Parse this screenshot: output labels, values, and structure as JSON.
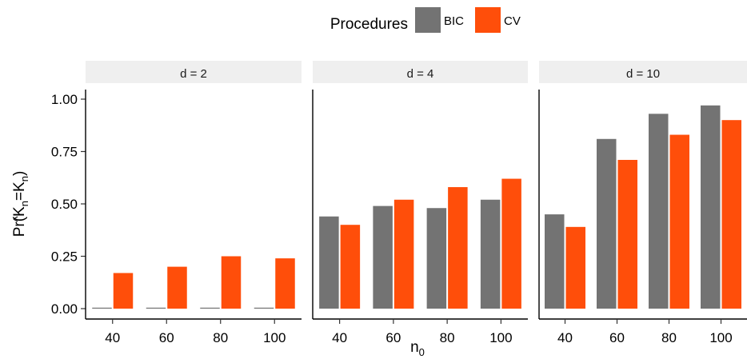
{
  "legend": {
    "title": "Procedures",
    "items": [
      {
        "label": "BIC",
        "color": "#737373"
      },
      {
        "label": "CV",
        "color": "#FF4E0A"
      }
    ]
  },
  "chart_data": {
    "type": "bar",
    "xlabel": "n",
    "xlabel_sub": "0",
    "ylabel": "Pr(K̂n=Kn)",
    "ylim": [
      0,
      1
    ],
    "y_ticks": [
      "0.00",
      "0.25",
      "0.50",
      "0.75",
      "1.00"
    ],
    "categories": [
      "40",
      "60",
      "80",
      "100"
    ],
    "legend_position": "top",
    "grid": false,
    "panel_strip_color": "#EFEFEF",
    "facets": [
      {
        "label": "d = 2",
        "series": [
          {
            "name": "BIC",
            "values": [
              0.0,
              0.0,
              0.0,
              0.0
            ]
          },
          {
            "name": "CV",
            "values": [
              0.17,
              0.2,
              0.25,
              0.24
            ]
          }
        ]
      },
      {
        "label": "d = 4",
        "series": [
          {
            "name": "BIC",
            "values": [
              0.44,
              0.49,
              0.48,
              0.52
            ]
          },
          {
            "name": "CV",
            "values": [
              0.4,
              0.52,
              0.58,
              0.62
            ]
          }
        ]
      },
      {
        "label": "d = 10",
        "series": [
          {
            "name": "BIC",
            "values": [
              0.45,
              0.81,
              0.93,
              0.97
            ]
          },
          {
            "name": "CV",
            "values": [
              0.39,
              0.71,
              0.83,
              0.9
            ]
          }
        ]
      }
    ]
  }
}
